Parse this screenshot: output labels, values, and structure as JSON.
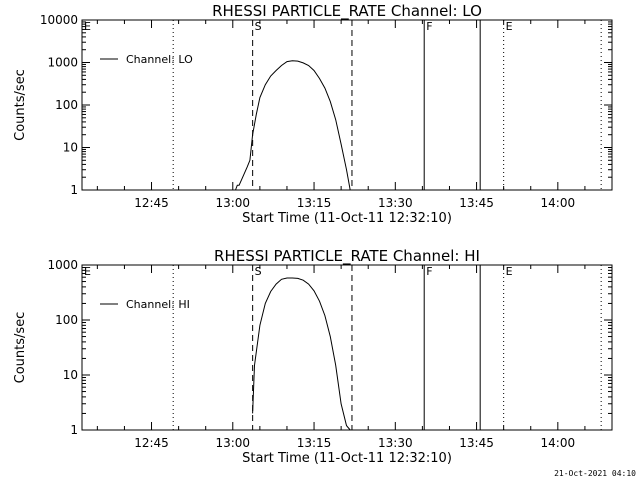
{
  "chart_data": [
    {
      "type": "line",
      "title": "RHESSI PARTICLE_RATE Channel: LO",
      "xlabel": "Start Time (11-Oct-11 12:32:10)",
      "ylabel": "Counts/sec",
      "yscale": "log",
      "ylim": [
        1,
        10000
      ],
      "xlim": [
        "12:32:10",
        "14:10:00"
      ],
      "xticks": [
        "12:45",
        "13:00",
        "13:15",
        "13:30",
        "13:45",
        "14:00"
      ],
      "yticks": [
        "1",
        "10",
        "100",
        "1000",
        "10000"
      ],
      "grid": false,
      "legend": {
        "position": "top-left",
        "entries": [
          "Channel: LO"
        ]
      },
      "markers": [
        {
          "label": "E",
          "time": "12:32:10",
          "style": "dotted"
        },
        {
          "label": "",
          "time": "12:49:00",
          "style": "dotted"
        },
        {
          "label": "S",
          "time": "13:03:40",
          "style": "dashed"
        },
        {
          "label": "",
          "time": "13:22:00",
          "style": "dashed"
        },
        {
          "label": "F",
          "time": "13:35:20",
          "style": "solid"
        },
        {
          "label": "",
          "time": "13:45:40",
          "style": "solid"
        },
        {
          "label": "E",
          "time": "13:50:00",
          "style": "dotted"
        },
        {
          "label": "",
          "time": "14:08:00",
          "style": "dotted"
        }
      ],
      "series": [
        {
          "name": "Channel: LO",
          "x": [
            "13:00:30",
            "13:00:50",
            "13:01:10",
            "13:01:40",
            "13:02:10",
            "13:02:40",
            "13:03:10",
            "13:03:40",
            "13:04:20",
            "13:05:00",
            "13:06:00",
            "13:07:00",
            "13:08:00",
            "13:09:00",
            "13:10:00",
            "13:11:00",
            "13:12:00",
            "13:13:00",
            "13:14:00",
            "13:15:00",
            "13:16:00",
            "13:17:00",
            "13:18:00",
            "13:19:00",
            "13:20:00",
            "13:21:00",
            "13:21:40"
          ],
          "y": [
            1,
            1.3,
            1.3,
            1.8,
            2.5,
            3.5,
            5,
            20,
            60,
            150,
            300,
            480,
            650,
            850,
            1050,
            1100,
            1080,
            980,
            850,
            650,
            420,
            250,
            120,
            45,
            12,
            3,
            1
          ]
        }
      ]
    },
    {
      "type": "line",
      "title": "RHESSI PARTICLE_RATE Channel: HI",
      "xlabel": "Start Time (11-Oct-11 12:32:10)",
      "ylabel": "Counts/sec",
      "yscale": "log",
      "ylim": [
        1,
        1000
      ],
      "xlim": [
        "12:32:10",
        "14:10:00"
      ],
      "xticks": [
        "12:45",
        "13:00",
        "13:15",
        "13:30",
        "13:45",
        "14:00"
      ],
      "yticks": [
        "1",
        "10",
        "100",
        "1000"
      ],
      "grid": false,
      "legend": {
        "position": "top-left",
        "entries": [
          "Channel: HI"
        ]
      },
      "markers": [
        {
          "label": "E",
          "time": "12:32:10",
          "style": "dotted"
        },
        {
          "label": "",
          "time": "12:49:00",
          "style": "dotted"
        },
        {
          "label": "S",
          "time": "13:03:40",
          "style": "dashed"
        },
        {
          "label": "",
          "time": "13:22:00",
          "style": "dashed"
        },
        {
          "label": "F",
          "time": "13:35:20",
          "style": "solid"
        },
        {
          "label": "",
          "time": "13:45:40",
          "style": "solid"
        },
        {
          "label": "E",
          "time": "13:50:00",
          "style": "dotted"
        },
        {
          "label": "",
          "time": "14:08:00",
          "style": "dotted"
        }
      ],
      "series": [
        {
          "name": "Channel: HI",
          "x": [
            "13:03:40",
            "13:04:00",
            "13:05:00",
            "13:06:00",
            "13:07:00",
            "13:08:00",
            "13:09:00",
            "13:10:00",
            "13:11:00",
            "13:12:00",
            "13:13:00",
            "13:14:00",
            "13:15:00",
            "13:16:00",
            "13:17:00",
            "13:18:00",
            "13:19:00",
            "13:20:00",
            "13:21:00",
            "13:21:40"
          ],
          "y": [
            2,
            15,
            80,
            200,
            330,
            450,
            550,
            580,
            580,
            570,
            530,
            450,
            340,
            220,
            120,
            50,
            15,
            3,
            1.2,
            1
          ]
        }
      ]
    }
  ],
  "footer": {
    "timestamp": "21-Oct-2021 04:10"
  }
}
